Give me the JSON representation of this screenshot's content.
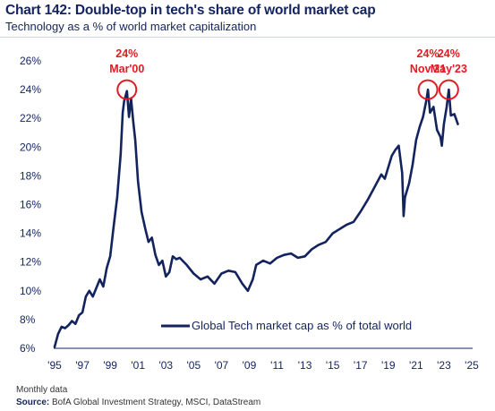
{
  "header": {
    "title": "Chart 142: Double-top in tech's share of world market cap",
    "subtitle": "Technology as a % of world market capitalization"
  },
  "footer": {
    "note": "Monthly data",
    "source_label": "Source:",
    "source_text": "BofA Global Investment Strategy, MSCI, DataStream"
  },
  "colors": {
    "line": "#13235e",
    "annotation": "#e31b23",
    "text": "#13235e"
  },
  "chart_data": {
    "type": "line",
    "title": "Chart 142: Double-top in tech's share of world market cap",
    "subtitle": "Technology as a % of world market capitalization",
    "xlabel": "",
    "ylabel": "",
    "xlim": [
      1995,
      2025
    ],
    "ylim": [
      6,
      26
    ],
    "x_ticks": [
      "'95",
      "'97",
      "'99",
      "'01",
      "'03",
      "'05",
      "'07",
      "'09",
      "'11",
      "'13",
      "'15",
      "'17",
      "'19",
      "'21",
      "'23",
      "'25"
    ],
    "x_tick_values": [
      1995,
      1997,
      1999,
      2001,
      2003,
      2005,
      2007,
      2009,
      2011,
      2013,
      2015,
      2017,
      2019,
      2021,
      2023,
      2025
    ],
    "y_ticks": [
      "26%",
      "24%",
      "22%",
      "20%",
      "18%",
      "16%",
      "14%",
      "12%",
      "10%",
      "8%",
      "6%"
    ],
    "y_tick_values": [
      26,
      24,
      22,
      20,
      18,
      16,
      14,
      12,
      10,
      8,
      6
    ],
    "grid": false,
    "legend": {
      "position": "bottom-right",
      "label": "Global Tech market cap as % of total world"
    },
    "annotations": [
      {
        "value": "24%",
        "label": "Mar'00",
        "x": 2000.2,
        "y": 24
      },
      {
        "value": "24%",
        "label": "Nov'21",
        "x": 2021.85,
        "y": 24
      },
      {
        "value": "24%",
        "label": "May'23",
        "x": 2023.35,
        "y": 24
      }
    ],
    "series": [
      {
        "name": "Global Tech market cap as % of total world",
        "x": [
          1995.0,
          1995.25,
          1995.5,
          1995.75,
          1996.0,
          1996.25,
          1996.5,
          1996.75,
          1997.0,
          1997.25,
          1997.5,
          1997.75,
          1998.0,
          1998.25,
          1998.5,
          1998.75,
          1999.0,
          1999.25,
          1999.5,
          1999.75,
          1999.9,
          2000.0,
          2000.2,
          2000.35,
          2000.5,
          2000.65,
          2000.8,
          2001.0,
          2001.25,
          2001.5,
          2001.75,
          2002.0,
          2002.25,
          2002.5,
          2002.75,
          2003.0,
          2003.25,
          2003.5,
          2003.75,
          2004.0,
          2004.5,
          2005.0,
          2005.5,
          2006.0,
          2006.5,
          2007.0,
          2007.5,
          2008.0,
          2008.5,
          2008.9,
          2009.25,
          2009.5,
          2010.0,
          2010.5,
          2011.0,
          2011.5,
          2012.0,
          2012.5,
          2013.0,
          2013.5,
          2014.0,
          2014.5,
          2015.0,
          2015.5,
          2016.0,
          2016.5,
          2017.0,
          2017.5,
          2018.0,
          2018.5,
          2018.75,
          2019.0,
          2019.25,
          2019.5,
          2019.75,
          2020.0,
          2020.1,
          2020.2,
          2020.5,
          2020.75,
          2021.0,
          2021.25,
          2021.5,
          2021.75,
          2021.85,
          2022.0,
          2022.25,
          2022.5,
          2022.75,
          2022.85,
          2023.0,
          2023.2,
          2023.35,
          2023.5,
          2023.75,
          2024.0
        ],
        "values": [
          6.1,
          7.0,
          7.5,
          7.4,
          7.6,
          7.9,
          7.7,
          8.3,
          8.5,
          9.6,
          10.0,
          9.6,
          10.2,
          10.8,
          10.3,
          11.6,
          12.4,
          14.5,
          16.5,
          19.5,
          22.4,
          23.2,
          23.9,
          22.1,
          23.4,
          21.8,
          20.5,
          17.6,
          15.5,
          14.4,
          13.4,
          13.7,
          12.5,
          11.8,
          12.1,
          11.0,
          11.3,
          12.4,
          12.2,
          12.3,
          11.8,
          11.2,
          10.8,
          11.0,
          10.5,
          11.2,
          11.4,
          11.3,
          10.5,
          10.0,
          10.8,
          11.8,
          12.1,
          11.9,
          12.3,
          12.5,
          12.6,
          12.3,
          12.4,
          12.9,
          13.2,
          13.4,
          14.0,
          14.3,
          14.6,
          14.8,
          15.5,
          16.3,
          17.2,
          18.1,
          17.8,
          18.6,
          19.4,
          19.8,
          20.1,
          18.2,
          15.2,
          16.5,
          17.5,
          18.8,
          20.5,
          21.4,
          22.1,
          23.3,
          24.0,
          22.4,
          22.8,
          21.2,
          20.7,
          20.1,
          21.6,
          22.8,
          24.0,
          22.2,
          22.3,
          21.6
        ]
      }
    ]
  }
}
